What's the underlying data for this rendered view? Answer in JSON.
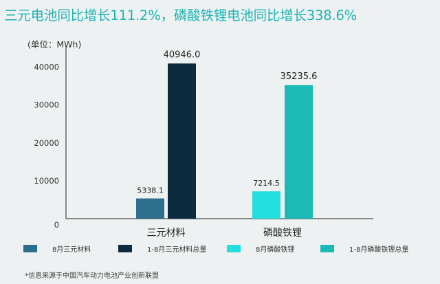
{
  "title": "三元电池同比增长111.2%，磷酸铁锂电池同比增长338.6%",
  "unit_label": "(单位：MWh)",
  "source": "*信息来源于中国汽车动力电池产业创新联盟",
  "colors": {
    "title": "#1fb3b3",
    "series_8m_ternary": "#2d6e8e",
    "series_ytd_ternary": "#0d2a3e",
    "series_8m_lfp": "#22dede",
    "series_ytd_lfp": "#1cbab6"
  },
  "chart_data": {
    "type": "bar",
    "title": "三元电池同比增长111.2%，磷酸铁锂电池同比增长338.6%",
    "ylabel": "(单位：MWh)",
    "ylim": [
      0,
      45000
    ],
    "yticks": [
      0,
      10000,
      20000,
      30000,
      40000
    ],
    "grid": false,
    "legend_position": "bottom",
    "categories": [
      "三元材料",
      "磷酸铁锂"
    ],
    "bars": [
      {
        "category": "三元材料",
        "series": "8月三元材料",
        "value": 5338.1,
        "label": "5338.1",
        "color": "#2d6e8e"
      },
      {
        "category": "三元材料",
        "series": "1-8月三元材料总量",
        "value": 40946.0,
        "label": "40946.0",
        "color": "#0d2a3e"
      },
      {
        "category": "磷酸铁锂",
        "series": "8月磷酸铁锂",
        "value": 7214.5,
        "label": "7214.5",
        "color": "#22dede"
      },
      {
        "category": "磷酸铁锂",
        "series": "1-8月磷酸铁锂总量",
        "value": 35235.6,
        "label": "35235.6",
        "color": "#1cbab6"
      }
    ],
    "legend": [
      {
        "name": "8月三元材料",
        "color": "#2d6e8e"
      },
      {
        "name": "1-8月三元材料总量",
        "color": "#0d2a3e"
      },
      {
        "name": "8月磷酸铁锂",
        "color": "#22dede"
      },
      {
        "name": "1-8月磷酸铁锂总量",
        "color": "#1cbab6"
      }
    ]
  }
}
